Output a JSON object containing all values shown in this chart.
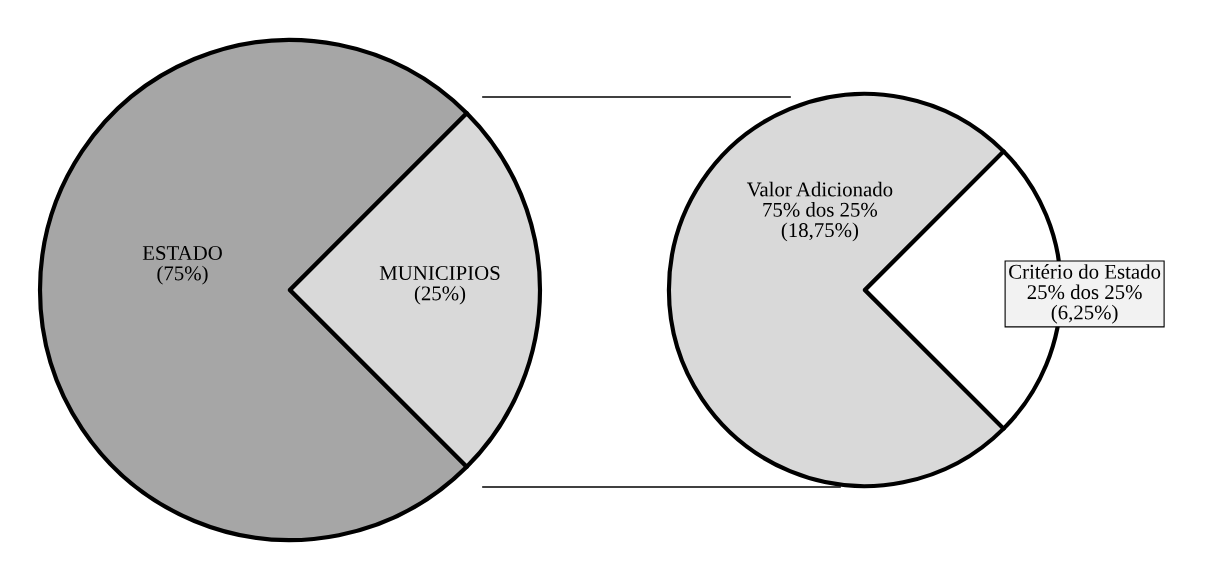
{
  "chart_data": [
    {
      "type": "pie",
      "categories": [
        "ESTADO",
        "MUNICIPIOS"
      ],
      "values": [
        75,
        25
      ],
      "colors": [
        "#a6a6a6",
        "#d9d9d9"
      ],
      "value_labels": [
        "(75%)",
        "(25%)"
      ]
    },
    {
      "type": "pie",
      "categories": [
        "Valor Adicionado",
        "Critério do Estado"
      ],
      "values": [
        75,
        25
      ],
      "colors": [
        "#d9d9d9",
        "#ffffff"
      ],
      "value_labels": [
        "75% dos 25%\n(18,75%)",
        "25% dos 25%\n(6,25%)"
      ]
    }
  ]
}
